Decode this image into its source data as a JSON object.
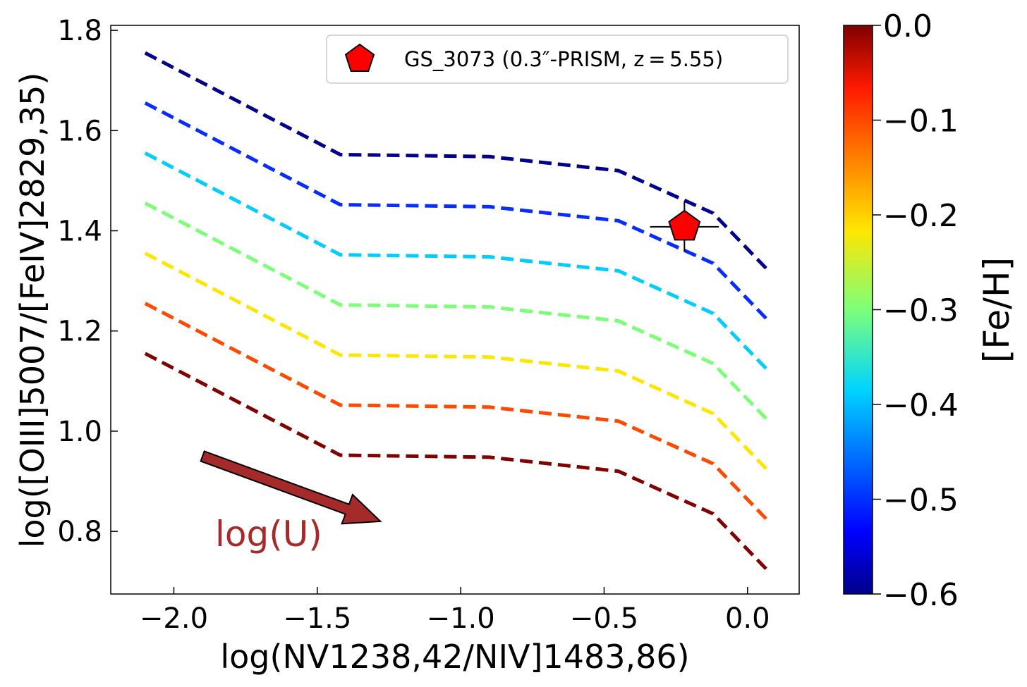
{
  "chart_data": {
    "type": "line",
    "xlabel": "log(NV1238,42/NIV]1483,86)",
    "ylabel": "log([OIII]5007/[FeIV]2829,35)",
    "xlim": [
      -2.22,
      0.18
    ],
    "ylim": [
      0.675,
      1.81
    ],
    "xticks": [
      -2.0,
      -1.5,
      -1.0,
      -0.5,
      0.0
    ],
    "xtick_labels": [
      "−2.0",
      "−1.5",
      "−1.0",
      "−0.5",
      "0.0"
    ],
    "yticks": [
      0.8,
      1.0,
      1.2,
      1.4,
      1.6,
      1.8
    ],
    "ytick_labels": [
      "0.8",
      "1.0",
      "1.2",
      "1.4",
      "1.6",
      "1.8"
    ],
    "x": [
      -2.1,
      -1.42,
      -0.9,
      -0.45,
      -0.12,
      0.07
    ],
    "series": [
      {
        "name": "[Fe/H] = -0.6",
        "color": "#00008b",
        "values": [
          1.755,
          1.552,
          1.548,
          1.52,
          1.435,
          1.322
        ]
      },
      {
        "name": "[Fe/H] = -0.5",
        "color": "#0a2dff",
        "values": [
          1.655,
          1.452,
          1.448,
          1.42,
          1.335,
          1.222
        ]
      },
      {
        "name": "[Fe/H] = -0.4",
        "color": "#00ccff",
        "values": [
          1.555,
          1.352,
          1.348,
          1.32,
          1.235,
          1.122
        ]
      },
      {
        "name": "[Fe/H] = -0.3",
        "color": "#7dff7a",
        "values": [
          1.455,
          1.252,
          1.248,
          1.22,
          1.135,
          1.022
        ]
      },
      {
        "name": "[Fe/H] = -0.2",
        "color": "#ffe600",
        "values": [
          1.355,
          1.152,
          1.148,
          1.12,
          1.035,
          0.922
        ]
      },
      {
        "name": "[Fe/H] = -0.1",
        "color": "#ff4a00",
        "values": [
          1.255,
          1.052,
          1.048,
          1.02,
          0.935,
          0.822
        ]
      },
      {
        "name": "[Fe/H] = 0.0",
        "color": "#800000",
        "values": [
          1.155,
          0.952,
          0.948,
          0.92,
          0.835,
          0.722
        ]
      }
    ],
    "point": {
      "label": "GS_3073 (0.3″-PRISM, z = 5.55)",
      "x": -0.22,
      "y": 1.408,
      "xerr": 0.12,
      "yerr": 0.05,
      "color": "#ff0000"
    },
    "arrow": {
      "label": "log(U)",
      "x0": -1.9,
      "y0": 0.95,
      "x1": -1.28,
      "y1": 0.82,
      "color": "#a52a2a"
    },
    "colorbar": {
      "label": "[Fe/H]",
      "range": [
        -0.6,
        0.0
      ],
      "ticks": [
        0.0,
        -0.1,
        -0.2,
        -0.3,
        -0.4,
        -0.5,
        -0.6
      ],
      "tick_labels": [
        "0.0",
        "−0.1",
        "−0.2",
        "−0.3",
        "−0.4",
        "−0.5",
        "−0.6"
      ],
      "colormap": "jet"
    },
    "legend_position": "top-right"
  }
}
